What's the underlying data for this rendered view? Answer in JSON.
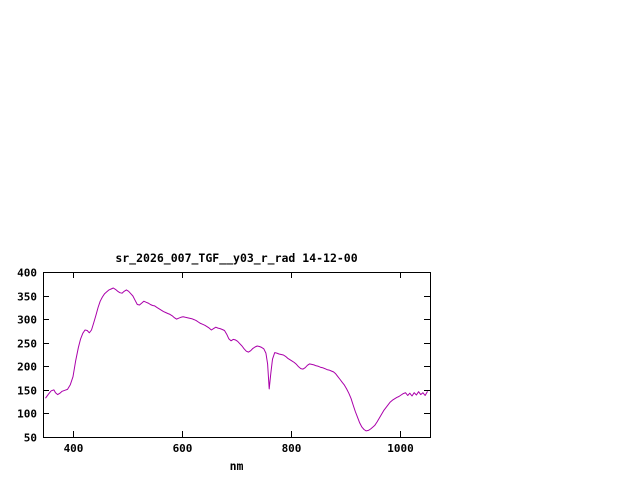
{
  "window": {
    "background": "#ffffff"
  },
  "chart_data": {
    "type": "line",
    "title": "sr_2026_007_TGF__y03_r_rad 14-12-00",
    "xlabel": "nm",
    "ylabel": "",
    "xlim": [
      345,
      1055
    ],
    "ylim": [
      50,
      400
    ],
    "xticks": [
      400,
      600,
      800,
      1000
    ],
    "yticks": [
      50,
      100,
      150,
      200,
      250,
      300,
      350,
      400
    ],
    "grid": false,
    "legend": "none",
    "frame_color": "#000000",
    "line_color": "#aa00aa",
    "series": [
      {
        "name": "sr_2026_007_TGF__y03_r_rad",
        "points": [
          [
            350,
            133
          ],
          [
            355,
            141
          ],
          [
            360,
            148
          ],
          [
            365,
            150
          ],
          [
            368,
            144
          ],
          [
            372,
            140
          ],
          [
            376,
            143
          ],
          [
            380,
            147
          ],
          [
            385,
            149
          ],
          [
            390,
            151
          ],
          [
            395,
            161
          ],
          [
            400,
            178
          ],
          [
            405,
            212
          ],
          [
            410,
            240
          ],
          [
            414,
            258
          ],
          [
            418,
            270
          ],
          [
            422,
            277
          ],
          [
            426,
            276
          ],
          [
            430,
            271
          ],
          [
            434,
            277
          ],
          [
            438,
            292
          ],
          [
            442,
            308
          ],
          [
            446,
            325
          ],
          [
            450,
            338
          ],
          [
            454,
            347
          ],
          [
            458,
            354
          ],
          [
            462,
            358
          ],
          [
            466,
            362
          ],
          [
            470,
            364
          ],
          [
            474,
            366
          ],
          [
            478,
            363
          ],
          [
            482,
            359
          ],
          [
            486,
            356
          ],
          [
            490,
            355
          ],
          [
            494,
            359
          ],
          [
            498,
            362
          ],
          [
            502,
            359
          ],
          [
            506,
            354
          ],
          [
            510,
            349
          ],
          [
            514,
            340
          ],
          [
            518,
            331
          ],
          [
            522,
            330
          ],
          [
            526,
            334
          ],
          [
            530,
            338
          ],
          [
            534,
            336
          ],
          [
            538,
            334
          ],
          [
            542,
            331
          ],
          [
            546,
            329
          ],
          [
            550,
            328
          ],
          [
            554,
            325
          ],
          [
            558,
            322
          ],
          [
            562,
            319
          ],
          [
            566,
            316
          ],
          [
            570,
            314
          ],
          [
            574,
            312
          ],
          [
            578,
            310
          ],
          [
            582,
            307
          ],
          [
            586,
            303
          ],
          [
            590,
            300
          ],
          [
            594,
            302
          ],
          [
            598,
            304
          ],
          [
            602,
            305
          ],
          [
            606,
            304
          ],
          [
            610,
            303
          ],
          [
            614,
            302
          ],
          [
            618,
            301
          ],
          [
            622,
            299
          ],
          [
            626,
            297
          ],
          [
            630,
            294
          ],
          [
            634,
            291
          ],
          [
            638,
            289
          ],
          [
            642,
            287
          ],
          [
            646,
            284
          ],
          [
            650,
            281
          ],
          [
            654,
            277
          ],
          [
            658,
            280
          ],
          [
            662,
            283
          ],
          [
            666,
            281
          ],
          [
            670,
            280
          ],
          [
            674,
            278
          ],
          [
            678,
            276
          ],
          [
            682,
            268
          ],
          [
            686,
            258
          ],
          [
            690,
            254
          ],
          [
            694,
            257
          ],
          [
            698,
            256
          ],
          [
            702,
            253
          ],
          [
            706,
            248
          ],
          [
            710,
            243
          ],
          [
            714,
            237
          ],
          [
            718,
            232
          ],
          [
            722,
            230
          ],
          [
            726,
            233
          ],
          [
            730,
            238
          ],
          [
            734,
            241
          ],
          [
            738,
            243
          ],
          [
            742,
            242
          ],
          [
            746,
            240
          ],
          [
            750,
            237
          ],
          [
            754,
            228
          ],
          [
            757,
            205
          ],
          [
            760,
            152
          ],
          [
            763,
            185
          ],
          [
            766,
            215
          ],
          [
            770,
            229
          ],
          [
            774,
            228
          ],
          [
            778,
            226
          ],
          [
            782,
            225
          ],
          [
            786,
            224
          ],
          [
            790,
            221
          ],
          [
            794,
            217
          ],
          [
            798,
            214
          ],
          [
            802,
            211
          ],
          [
            806,
            208
          ],
          [
            810,
            204
          ],
          [
            814,
            199
          ],
          [
            818,
            195
          ],
          [
            822,
            194
          ],
          [
            826,
            197
          ],
          [
            830,
            202
          ],
          [
            834,
            205
          ],
          [
            838,
            204
          ],
          [
            842,
            203
          ],
          [
            846,
            201
          ],
          [
            850,
            200
          ],
          [
            854,
            198
          ],
          [
            858,
            197
          ],
          [
            862,
            195
          ],
          [
            866,
            193
          ],
          [
            870,
            192
          ],
          [
            874,
            190
          ],
          [
            878,
            188
          ],
          [
            882,
            184
          ],
          [
            886,
            178
          ],
          [
            890,
            172
          ],
          [
            894,
            166
          ],
          [
            898,
            160
          ],
          [
            902,
            152
          ],
          [
            906,
            143
          ],
          [
            910,
            132
          ],
          [
            914,
            118
          ],
          [
            918,
            104
          ],
          [
            922,
            92
          ],
          [
            926,
            80
          ],
          [
            930,
            71
          ],
          [
            934,
            66
          ],
          [
            938,
            63
          ],
          [
            942,
            64
          ],
          [
            946,
            67
          ],
          [
            950,
            71
          ],
          [
            954,
            75
          ],
          [
            958,
            82
          ],
          [
            962,
            90
          ],
          [
            966,
            98
          ],
          [
            970,
            106
          ],
          [
            974,
            112
          ],
          [
            978,
            118
          ],
          [
            982,
            124
          ],
          [
            986,
            128
          ],
          [
            990,
            131
          ],
          [
            994,
            134
          ],
          [
            998,
            136
          ],
          [
            1002,
            139
          ],
          [
            1006,
            142
          ],
          [
            1010,
            144
          ],
          [
            1014,
            138
          ],
          [
            1018,
            143
          ],
          [
            1022,
            137
          ],
          [
            1026,
            144
          ],
          [
            1030,
            139
          ],
          [
            1034,
            146
          ],
          [
            1038,
            140
          ],
          [
            1042,
            144
          ],
          [
            1046,
            138
          ],
          [
            1050,
            146
          ]
        ]
      }
    ]
  }
}
